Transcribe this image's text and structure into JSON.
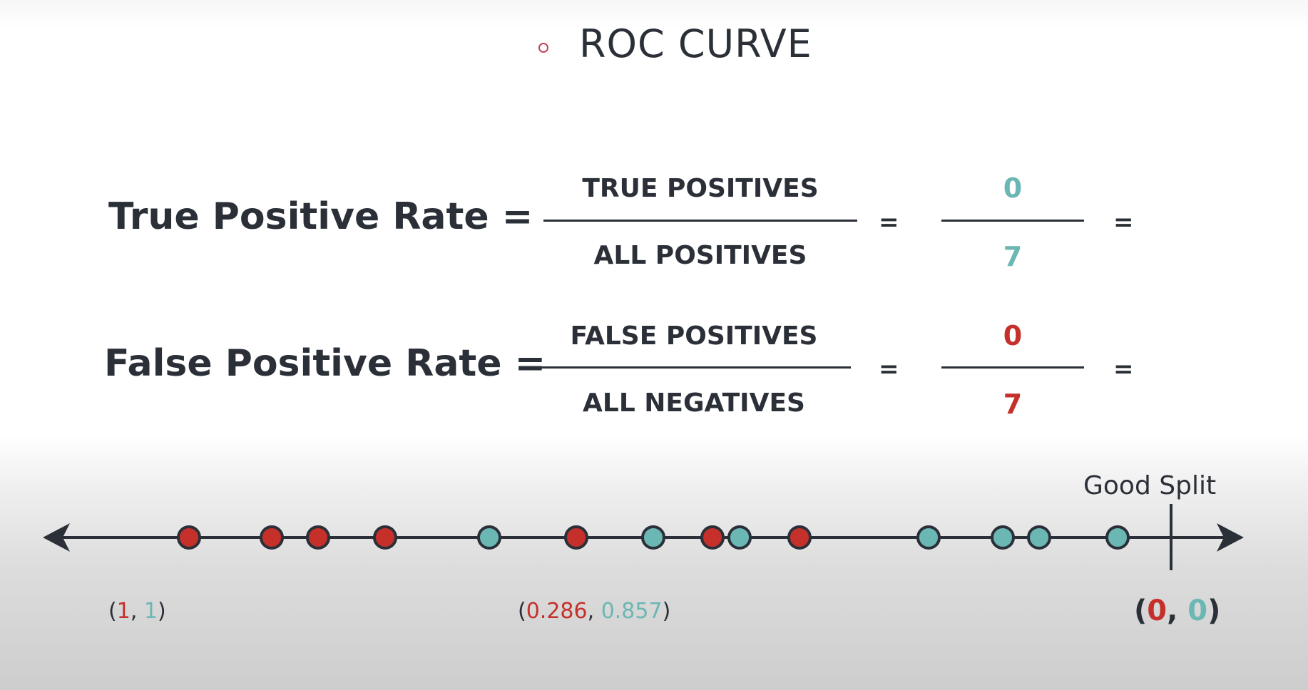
{
  "title": "ROC CURVE",
  "tpr": {
    "label": "True Positive Rate =",
    "numerator": "TRUE POSITIVES",
    "denominator": "ALL POSITIVES",
    "eq1": "=",
    "value_num": "0",
    "value_den": "7",
    "eq2": "="
  },
  "fpr": {
    "label": "False Positive Rate =",
    "numerator": "FALSE POSITIVES",
    "denominator": "ALL NEGATIVES",
    "eq1": "=",
    "value_num": "0",
    "value_den": "7",
    "eq2": "="
  },
  "split_label": "Good Split",
  "points_order": [
    "red",
    "red",
    "red",
    "red",
    "teal",
    "red",
    "teal",
    "red",
    "teal",
    "red",
    "teal",
    "teal",
    "teal",
    "teal"
  ],
  "coords": {
    "left": {
      "open": "(",
      "a": "1",
      "sep": ", ",
      "b": "1",
      "close": ")"
    },
    "middle": {
      "open": "(",
      "a": "0.286",
      "sep": ", ",
      "b": "0.857",
      "close": ")"
    },
    "right": {
      "open": "(",
      "a": "0",
      "sep": ", ",
      "b": "0",
      "close": ")"
    }
  },
  "colors": {
    "red": "#c5302b",
    "teal": "#6ab7b4",
    "ink": "#2b3038",
    "accent": "#c4425b"
  }
}
